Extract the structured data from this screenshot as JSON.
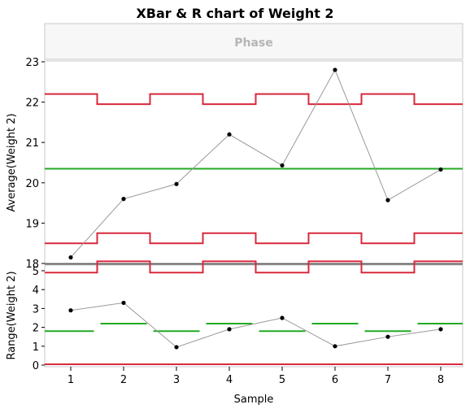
{
  "title": "XBar & R chart of Weight 2",
  "phase_label": "Phase",
  "colors": {
    "limit": "#d8283c",
    "center": "#22aa22",
    "data_line": "#999999",
    "point": "#000000",
    "frame": "#c8c8c8"
  },
  "chart_data": [
    {
      "type": "line",
      "name": "xbar",
      "ylabel": "Average(Weight 2)",
      "xlabel": "",
      "ylim": [
        18,
        23
      ],
      "yticks": [
        18,
        19,
        20,
        21,
        22,
        23
      ],
      "x": [
        1,
        2,
        3,
        4,
        5,
        6,
        7,
        8
      ],
      "values": [
        18.15,
        19.6,
        19.97,
        21.2,
        20.43,
        22.8,
        19.57,
        20.33
      ],
      "center_line": 20.35,
      "ucl": [
        22.2,
        21.95,
        22.2,
        21.95,
        22.2,
        21.95,
        22.2,
        21.95
      ],
      "lcl": [
        18.5,
        18.75,
        18.5,
        18.75,
        18.5,
        18.75,
        18.5,
        18.75
      ]
    },
    {
      "type": "line",
      "name": "range",
      "ylabel": "Range(Weight 2)",
      "xlabel": "Sample",
      "ylim": [
        0,
        5.3
      ],
      "yticks": [
        0,
        1,
        2,
        3,
        4,
        5
      ],
      "x": [
        1,
        2,
        3,
        4,
        5,
        6,
        7,
        8
      ],
      "xticks": [
        "1",
        "2",
        "3",
        "4",
        "5",
        "6",
        "7",
        "8"
      ],
      "values": [
        2.9,
        3.3,
        0.95,
        1.9,
        2.5,
        1.0,
        1.5,
        1.9
      ],
      "center": [
        1.8,
        2.2,
        1.8,
        2.2,
        1.8,
        2.2,
        1.8,
        2.2
      ],
      "ucl": [
        4.9,
        5.5,
        4.9,
        5.5,
        4.9,
        5.5,
        4.9,
        5.5
      ],
      "lcl": [
        0,
        0,
        0,
        0,
        0,
        0,
        0,
        0
      ]
    }
  ]
}
